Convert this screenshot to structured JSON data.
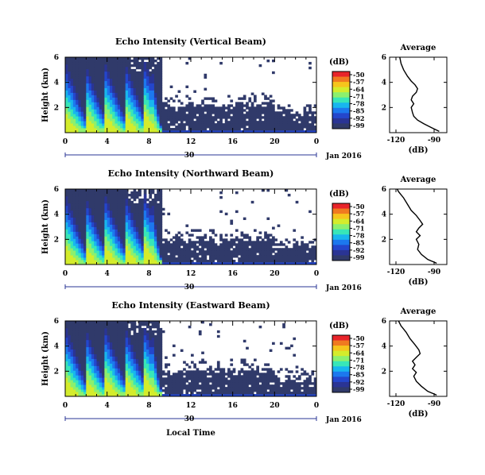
{
  "figure": {
    "xlabel": "Local Time",
    "date_label": "Jan 2016",
    "day_label": "30",
    "colorbar": {
      "unit": "(dB)",
      "ticks": [
        "-50",
        "-57",
        "-64",
        "-71",
        "-78",
        "-85",
        "-92",
        "-99"
      ],
      "colors": [
        "#e8242a",
        "#f07a20",
        "#f6c51c",
        "#d4ec2c",
        "#8cf06e",
        "#38e6b8",
        "#18b6ee",
        "#1c78ee",
        "#2446cc",
        "#2a3494",
        "#303a6a"
      ]
    }
  },
  "chart_data": [
    {
      "type": "heatmap",
      "title": "Echo Intensity (Vertical Beam)",
      "ylabel": "Height (km)",
      "x_ticks": [
        "0",
        "4",
        "8",
        "12",
        "16",
        "20",
        "0"
      ],
      "xlim": [
        0,
        24
      ],
      "y_ticks": [
        "2",
        "4",
        "6"
      ],
      "ylim": [
        0,
        6
      ],
      "value_range_db": [
        -99,
        -50
      ],
      "description_pattern": "plume_columns_0_to_9h_then_low_layer",
      "clear_air_layer_top_km_after_9h": 2.2
    },
    {
      "type": "line",
      "title": "Average",
      "xlabel": "(dB)",
      "x_ticks": [
        "-120",
        "-90"
      ],
      "xlim": [
        -125,
        -80
      ],
      "y_ticks": [
        "2",
        "4",
        "6"
      ],
      "ylim": [
        0,
        6
      ],
      "profile_db_vs_km": [
        [
          -86,
          0.1
        ],
        [
          -92,
          0.4
        ],
        [
          -98,
          0.7
        ],
        [
          -103,
          1.0
        ],
        [
          -106,
          1.3
        ],
        [
          -107,
          1.6
        ],
        [
          -108,
          2.0
        ],
        [
          -106,
          2.3
        ],
        [
          -108,
          2.6
        ],
        [
          -107,
          2.9
        ],
        [
          -104,
          3.2
        ],
        [
          -103,
          3.5
        ],
        [
          -105,
          3.8
        ],
        [
          -108,
          4.1
        ],
        [
          -111,
          4.5
        ],
        [
          -114,
          5.0
        ],
        [
          -116,
          5.5
        ],
        [
          -117,
          6.0
        ]
      ]
    },
    {
      "type": "heatmap",
      "title": "Echo Intensity (Northward Beam)",
      "ylabel": "Height (km)",
      "x_ticks": [
        "0",
        "4",
        "8",
        "12",
        "16",
        "20",
        "0"
      ],
      "xlim": [
        0,
        24
      ],
      "y_ticks": [
        "2",
        "4",
        "6"
      ],
      "ylim": [
        0,
        6
      ],
      "value_range_db": [
        -99,
        -50
      ],
      "description_pattern": "plume_columns_0_to_9h_then_low_layer",
      "clear_air_layer_top_km_after_9h": 2.0
    },
    {
      "type": "line",
      "title": "Average",
      "xlabel": "(dB)",
      "x_ticks": [
        "-120",
        "-90"
      ],
      "xlim": [
        -125,
        -80
      ],
      "y_ticks": [
        "2",
        "4",
        "6"
      ],
      "ylim": [
        0,
        6
      ],
      "profile_db_vs_km": [
        [
          -88,
          0.1
        ],
        [
          -95,
          0.4
        ],
        [
          -100,
          0.8
        ],
        [
          -103,
          1.2
        ],
        [
          -102,
          1.6
        ],
        [
          -104,
          2.0
        ],
        [
          -101,
          2.3
        ],
        [
          -104,
          2.6
        ],
        [
          -102,
          2.9
        ],
        [
          -99,
          3.2
        ],
        [
          -101,
          3.5
        ],
        [
          -104,
          3.9
        ],
        [
          -108,
          4.3
        ],
        [
          -111,
          4.8
        ],
        [
          -114,
          5.3
        ],
        [
          -118,
          5.8
        ],
        [
          -119,
          6.0
        ]
      ]
    },
    {
      "type": "heatmap",
      "title": "Echo Intensity (Eastward Beam)",
      "ylabel": "Height (km)",
      "x_ticks": [
        "0",
        "4",
        "8",
        "12",
        "16",
        "20",
        "0"
      ],
      "xlim": [
        0,
        24
      ],
      "y_ticks": [
        "2",
        "4",
        "6"
      ],
      "ylim": [
        0,
        6
      ],
      "value_range_db": [
        -99,
        -50
      ],
      "description_pattern": "plume_columns_0_to_9h_then_low_layer",
      "clear_air_layer_top_km_after_9h": 2.0
    },
    {
      "type": "line",
      "title": "Average",
      "xlabel": "(dB)",
      "x_ticks": [
        "-120",
        "-90"
      ],
      "xlim": [
        -125,
        -80
      ],
      "y_ticks": [
        "2",
        "4",
        "6"
      ],
      "ylim": [
        0,
        6
      ],
      "profile_db_vs_km": [
        [
          -88,
          0.1
        ],
        [
          -95,
          0.4
        ],
        [
          -100,
          0.8
        ],
        [
          -104,
          1.2
        ],
        [
          -106,
          1.6
        ],
        [
          -104,
          1.9
        ],
        [
          -107,
          2.2
        ],
        [
          -105,
          2.5
        ],
        [
          -107,
          2.8
        ],
        [
          -104,
          3.1
        ],
        [
          -101,
          3.4
        ],
        [
          -102,
          3.7
        ],
        [
          -105,
          4.1
        ],
        [
          -109,
          4.6
        ],
        [
          -112,
          5.1
        ],
        [
          -116,
          5.6
        ],
        [
          -118,
          6.0
        ]
      ]
    }
  ]
}
